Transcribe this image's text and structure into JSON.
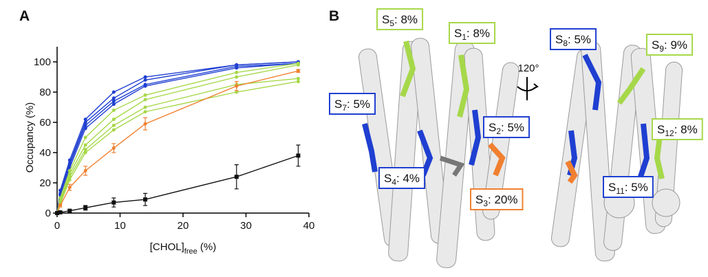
{
  "panel_labels": [
    "A",
    "B"
  ],
  "rotation_label": "120°",
  "chart_data": {
    "type": "line",
    "y_label": "Occupancy (%)",
    "x_label": {
      "text": "[CHOL]",
      "sub": "free",
      "suffix": " (%)"
    },
    "x": [
      0,
      0.5,
      2,
      4.5,
      9,
      14,
      28.5,
      38.3
    ],
    "xlim": [
      0,
      40
    ],
    "xticks": [
      0,
      10,
      20,
      30,
      40
    ],
    "ylim": [
      0,
      110
    ],
    "yticks": [
      0,
      20,
      40,
      60,
      80,
      100
    ],
    "series": [
      {
        "color": "#1f3fd1",
        "marker": "circle",
        "values": [
          0,
          15,
          35,
          62,
          80,
          90,
          98,
          100
        ]
      },
      {
        "color": "#1f3fd1",
        "marker": "circle",
        "values": [
          0,
          13,
          33,
          60,
          76,
          88,
          98,
          100
        ]
      },
      {
        "color": "#1f3fd1",
        "marker": "circle",
        "values": [
          0,
          12,
          32,
          58,
          74,
          85,
          97,
          99
        ]
      },
      {
        "color": "#1f3fd1",
        "marker": "circle",
        "values": [
          0,
          10,
          30,
          56,
          72,
          84,
          96,
          99
        ]
      },
      {
        "color": "#a6d84a",
        "marker": "circle",
        "values": [
          0,
          10,
          28,
          50,
          68,
          78,
          93,
          99
        ]
      },
      {
        "color": "#a6d84a",
        "marker": "circle",
        "values": [
          0,
          8,
          26,
          45,
          62,
          75,
          90,
          98
        ]
      },
      {
        "color": "#a6d84a",
        "marker": "circle",
        "values": [
          0,
          7,
          24,
          42,
          58,
          70,
          85,
          89
        ]
      },
      {
        "color": "#a6d84a",
        "marker": "circle",
        "values": [
          0,
          6,
          22,
          40,
          55,
          67,
          80,
          87
        ]
      },
      {
        "color": "#f08030",
        "marker": "circle",
        "values": [
          0,
          5,
          17,
          28,
          43,
          59,
          84,
          94
        ],
        "errors": [
          0,
          1,
          2,
          3,
          3,
          4,
          3,
          1
        ]
      },
      {
        "color": "#111111",
        "marker": "square",
        "values": [
          0,
          0.5,
          1.5,
          3.5,
          7,
          9,
          24,
          38
        ],
        "errors": [
          0,
          0.5,
          1,
          1.5,
          3,
          4,
          8,
          7
        ]
      }
    ]
  },
  "sites": [
    {
      "name": "S",
      "sub": "5",
      "text": ": 8%",
      "color": "#a6d84a"
    },
    {
      "name": "S",
      "sub": "1",
      "text": ": 8%",
      "color": "#a6d84a"
    },
    {
      "name": "S",
      "sub": "8",
      "text": ": 5%",
      "color": "#1f3fd1"
    },
    {
      "name": "S",
      "sub": "9",
      "text": ": 9%",
      "color": "#a6d84a"
    },
    {
      "name": "S",
      "sub": "7",
      "text": ": 5%",
      "color": "#1f3fd1"
    },
    {
      "name": "S",
      "sub": "2",
      "text": ": 5%",
      "color": "#1f3fd1"
    },
    {
      "name": "S",
      "sub": "12",
      "text": ": 8%",
      "color": "#a6d84a"
    },
    {
      "name": "S",
      "sub": "4",
      "text": ": 4%",
      "color": "#1f3fd1"
    },
    {
      "name": "S",
      "sub": "3",
      "text": ": 20%",
      "color": "#f08030"
    },
    {
      "name": "S",
      "sub": "11",
      "text": ": 5%",
      "color": "#1f3fd1"
    }
  ]
}
